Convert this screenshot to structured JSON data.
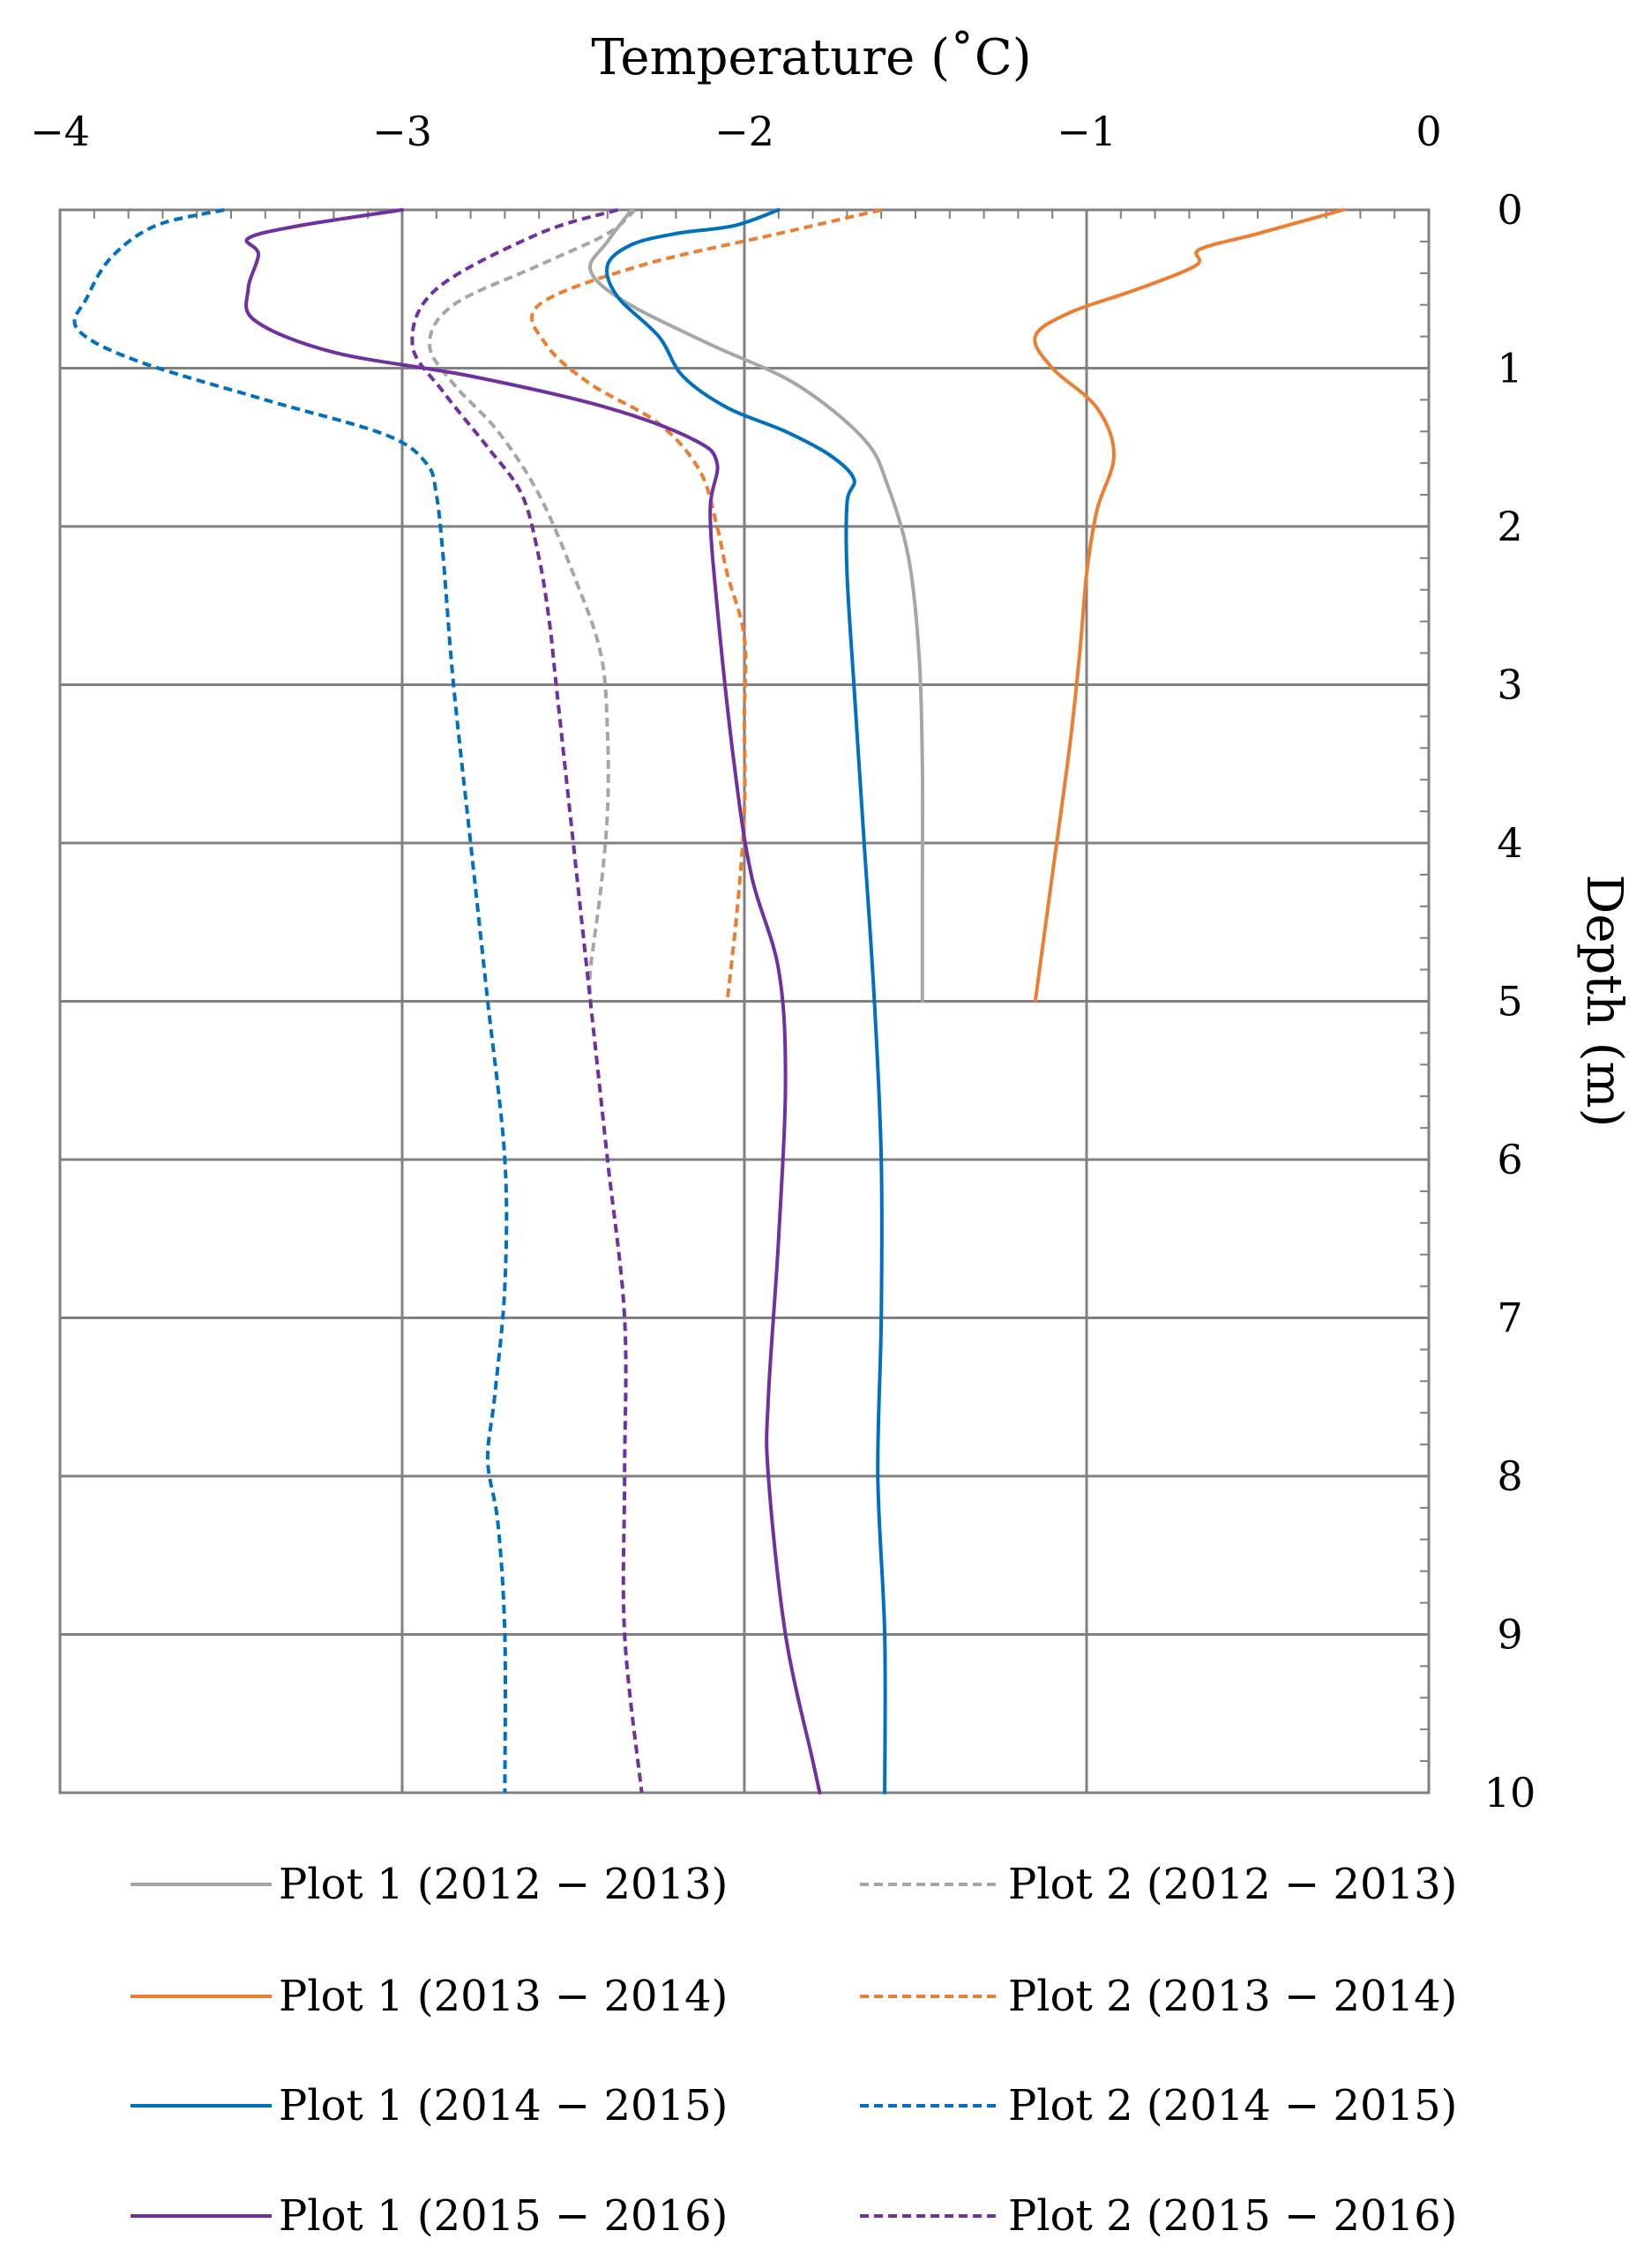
{
  "chart_data": {
    "type": "line",
    "x_label": "Temperature (˚C)",
    "y_label": "Depth (m)",
    "x_range": [
      -4,
      0
    ],
    "y_range": [
      0,
      10
    ],
    "y_inverted": true,
    "x_ticks": [
      -4,
      -3,
      -2,
      -1,
      0
    ],
    "x_tick_labels": [
      "−4",
      "−3",
      "−2",
      "−1",
      "0"
    ],
    "y_ticks": [
      0,
      1,
      2,
      3,
      4,
      5,
      6,
      7,
      8,
      9,
      10
    ],
    "y_tick_labels": [
      "0",
      "1",
      "2",
      "3",
      "4",
      "5",
      "6",
      "7",
      "8",
      "9",
      "10"
    ],
    "grid": true,
    "legend_position": "bottom",
    "series": [
      {
        "name": "Plot 1 (2012 − 2013)",
        "color": "#a6a6a6",
        "dash": "solid",
        "points": [
          [
            -2.33,
            0
          ],
          [
            -2.4,
            0.2
          ],
          [
            -2.45,
            0.38
          ],
          [
            -2.35,
            0.58
          ],
          [
            -2.1,
            0.85
          ],
          [
            -1.85,
            1.1
          ],
          [
            -1.65,
            1.45
          ],
          [
            -1.58,
            1.75
          ],
          [
            -1.52,
            2.2
          ],
          [
            -1.49,
            2.8
          ],
          [
            -1.48,
            3.5
          ],
          [
            -1.48,
            4.3
          ],
          [
            -1.48,
            5.0
          ]
        ]
      },
      {
        "name": "Plot 2 (2012 − 2013)",
        "color": "#a6a6a6",
        "dash": "dashed",
        "points": [
          [
            -2.32,
            0
          ],
          [
            -2.4,
            0.15
          ],
          [
            -2.6,
            0.35
          ],
          [
            -2.85,
            0.6
          ],
          [
            -2.92,
            0.85
          ],
          [
            -2.85,
            1.1
          ],
          [
            -2.72,
            1.4
          ],
          [
            -2.6,
            1.8
          ],
          [
            -2.5,
            2.3
          ],
          [
            -2.42,
            2.8
          ],
          [
            -2.4,
            3.3
          ],
          [
            -2.4,
            3.8
          ],
          [
            -2.42,
            4.3
          ],
          [
            -2.45,
            4.8
          ],
          [
            -2.45,
            5.0
          ]
        ]
      },
      {
        "name": "Plot 1 (2013 − 2014)",
        "color": "#ed7d31",
        "dash": "solid",
        "points": [
          [
            -0.25,
            0
          ],
          [
            -0.5,
            0.15
          ],
          [
            -0.67,
            0.25
          ],
          [
            -0.68,
            0.35
          ],
          [
            -0.85,
            0.5
          ],
          [
            -1.05,
            0.65
          ],
          [
            -1.15,
            0.8
          ],
          [
            -1.1,
            1.0
          ],
          [
            -0.97,
            1.25
          ],
          [
            -0.92,
            1.55
          ],
          [
            -0.97,
            1.9
          ],
          [
            -1.0,
            2.3
          ],
          [
            -1.02,
            2.8
          ],
          [
            -1.05,
            3.4
          ],
          [
            -1.1,
            4.2
          ],
          [
            -1.15,
            5.0
          ]
        ]
      },
      {
        "name": "Plot 2 (2013 − 2014)",
        "color": "#ed7d31",
        "dash": "dashed",
        "points": [
          [
            -1.6,
            0
          ],
          [
            -1.9,
            0.15
          ],
          [
            -2.3,
            0.35
          ],
          [
            -2.6,
            0.6
          ],
          [
            -2.58,
            0.85
          ],
          [
            -2.45,
            1.1
          ],
          [
            -2.25,
            1.35
          ],
          [
            -2.13,
            1.65
          ],
          [
            -2.08,
            2.0
          ],
          [
            -2.05,
            2.3
          ],
          [
            -2.0,
            2.7
          ],
          [
            -2.0,
            3.2
          ],
          [
            -2.0,
            3.8
          ],
          [
            -2.02,
            4.4
          ],
          [
            -2.05,
            5.0
          ]
        ]
      },
      {
        "name": "Plot 1 (2014 − 2015)",
        "color": "#0070c0",
        "dash": "solid",
        "points": [
          [
            -1.9,
            0
          ],
          [
            -2.03,
            0.1
          ],
          [
            -2.2,
            0.15
          ],
          [
            -2.33,
            0.22
          ],
          [
            -2.4,
            0.35
          ],
          [
            -2.37,
            0.55
          ],
          [
            -2.25,
            0.8
          ],
          [
            -2.18,
            1.05
          ],
          [
            -2.05,
            1.25
          ],
          [
            -1.88,
            1.4
          ],
          [
            -1.75,
            1.55
          ],
          [
            -1.68,
            1.7
          ],
          [
            -1.7,
            1.85
          ],
          [
            -1.7,
            2.3
          ],
          [
            -1.68,
            3.0
          ],
          [
            -1.65,
            4.0
          ],
          [
            -1.62,
            5.0
          ],
          [
            -1.6,
            6.0
          ],
          [
            -1.6,
            7.0
          ],
          [
            -1.61,
            8.0
          ],
          [
            -1.59,
            9.0
          ],
          [
            -1.59,
            10.0
          ]
        ]
      },
      {
        "name": "Plot 2 (2014 − 2015)",
        "color": "#0070c0",
        "dash": "dashed",
        "points": [
          [
            -3.52,
            0
          ],
          [
            -3.72,
            0.1
          ],
          [
            -3.85,
            0.3
          ],
          [
            -3.92,
            0.55
          ],
          [
            -3.95,
            0.75
          ],
          [
            -3.78,
            0.95
          ],
          [
            -3.4,
            1.2
          ],
          [
            -3.05,
            1.42
          ],
          [
            -2.93,
            1.6
          ],
          [
            -2.9,
            1.8
          ],
          [
            -2.88,
            2.2
          ],
          [
            -2.85,
            3.0
          ],
          [
            -2.8,
            4.0
          ],
          [
            -2.75,
            5.0
          ],
          [
            -2.7,
            6.0
          ],
          [
            -2.7,
            6.8
          ],
          [
            -2.73,
            7.5
          ],
          [
            -2.75,
            7.9
          ],
          [
            -2.72,
            8.3
          ],
          [
            -2.7,
            9.0
          ],
          [
            -2.7,
            10.0
          ]
        ]
      },
      {
        "name": "Plot 1 (2015 − 2016)",
        "color": "#7030a0",
        "dash": "solid",
        "points": [
          [
            -3.0,
            0
          ],
          [
            -3.3,
            0.1
          ],
          [
            -3.45,
            0.18
          ],
          [
            -3.42,
            0.28
          ],
          [
            -3.45,
            0.5
          ],
          [
            -3.43,
            0.7
          ],
          [
            -3.2,
            0.9
          ],
          [
            -2.8,
            1.05
          ],
          [
            -2.4,
            1.25
          ],
          [
            -2.15,
            1.45
          ],
          [
            -2.08,
            1.6
          ],
          [
            -2.1,
            1.9
          ],
          [
            -2.08,
            2.5
          ],
          [
            -2.03,
            3.5
          ],
          [
            -1.98,
            4.2
          ],
          [
            -1.9,
            4.8
          ],
          [
            -1.88,
            5.5
          ],
          [
            -1.9,
            6.5
          ],
          [
            -1.93,
            7.5
          ],
          [
            -1.93,
            8.0
          ],
          [
            -1.88,
            9.0
          ],
          [
            -1.8,
            9.8
          ],
          [
            -1.78,
            10.0
          ]
        ]
      },
      {
        "name": "Plot 2 (2015 − 2016)",
        "color": "#7030a0",
        "dash": "dashed",
        "points": [
          [
            -2.37,
            0
          ],
          [
            -2.6,
            0.15
          ],
          [
            -2.9,
            0.5
          ],
          [
            -2.97,
            0.85
          ],
          [
            -2.88,
            1.15
          ],
          [
            -2.75,
            1.5
          ],
          [
            -2.65,
            1.8
          ],
          [
            -2.6,
            2.2
          ],
          [
            -2.57,
            2.6
          ],
          [
            -2.55,
            3.0
          ],
          [
            -2.5,
            4.0
          ],
          [
            -2.45,
            5.0
          ],
          [
            -2.4,
            6.0
          ],
          [
            -2.35,
            7.0
          ],
          [
            -2.35,
            8.0
          ],
          [
            -2.35,
            9.0
          ],
          [
            -2.3,
            10.0
          ]
        ]
      }
    ]
  }
}
